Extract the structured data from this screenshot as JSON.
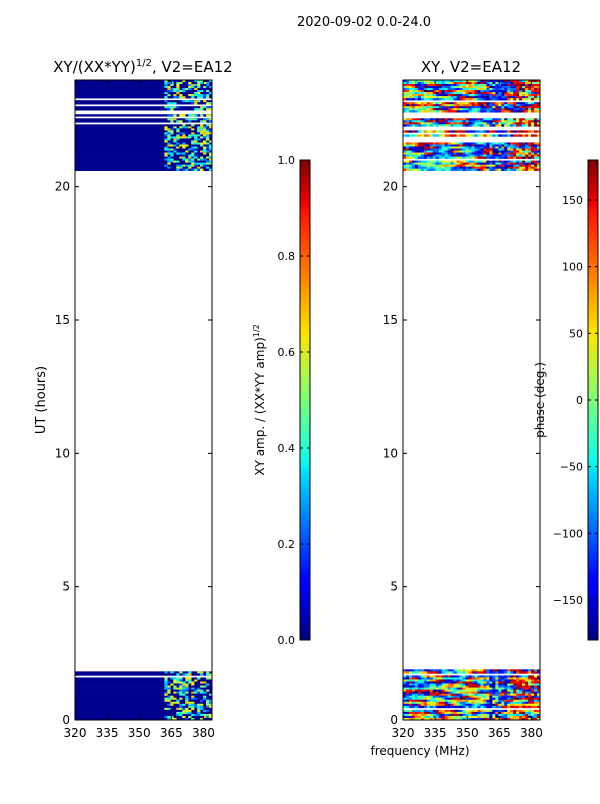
{
  "suptitle": "2020-09-02 0.0-24.0",
  "chart_data": [
    {
      "type": "heatmap",
      "title_main": "XY/(XX*YY)",
      "title_sup": "1/2",
      "title_tail": ", V2=EA12",
      "xlabel": "",
      "ylabel": "UT (hours)",
      "xlim": [
        320,
        384
      ],
      "ylim": [
        0,
        24
      ],
      "xticks": [
        "320",
        "335",
        "350",
        "365",
        "380"
      ],
      "xtick_values": [
        320,
        335,
        350,
        365,
        380
      ],
      "yticks": [
        "0",
        "5",
        "10",
        "15",
        "20"
      ],
      "ytick_values": [
        0,
        5,
        10,
        15,
        20
      ],
      "data_time_ranges": [
        [
          0,
          1.9
        ],
        [
          20.6,
          24
        ]
      ],
      "colorbar": {
        "label_main": "XY amp. / (XX*YY amp)",
        "label_sup": "1/2",
        "range": [
          0.0,
          1.0
        ],
        "ticks": [
          "0.0",
          "0.2",
          "0.4",
          "0.6",
          "0.8",
          "1.0"
        ],
        "tick_values": [
          0.0,
          0.2,
          0.4,
          0.6,
          0.8,
          1.0
        ],
        "colormap": "jet"
      }
    },
    {
      "type": "heatmap",
      "title_main": "XY, V2=EA12",
      "xlabel": "frequency (MHz)",
      "ylabel": "",
      "xlim": [
        320,
        384
      ],
      "ylim": [
        0,
        24
      ],
      "xticks": [
        "320",
        "335",
        "350",
        "365",
        "380"
      ],
      "xtick_values": [
        320,
        335,
        350,
        365,
        380
      ],
      "yticks": [
        "0",
        "5",
        "10",
        "15",
        "20"
      ],
      "ytick_values": [
        0,
        5,
        10,
        15,
        20
      ],
      "data_time_ranges": [
        [
          0,
          1.9
        ],
        [
          20.6,
          24
        ]
      ],
      "colorbar": {
        "label_main": "phase (deg.)",
        "range": [
          -180,
          180
        ],
        "ticks": [
          "−150",
          "−100",
          "−50",
          "0",
          "50",
          "100",
          "150"
        ],
        "tick_values": [
          -150,
          -100,
          -50,
          0,
          50,
          100,
          150
        ],
        "colormap": "jet"
      }
    }
  ]
}
